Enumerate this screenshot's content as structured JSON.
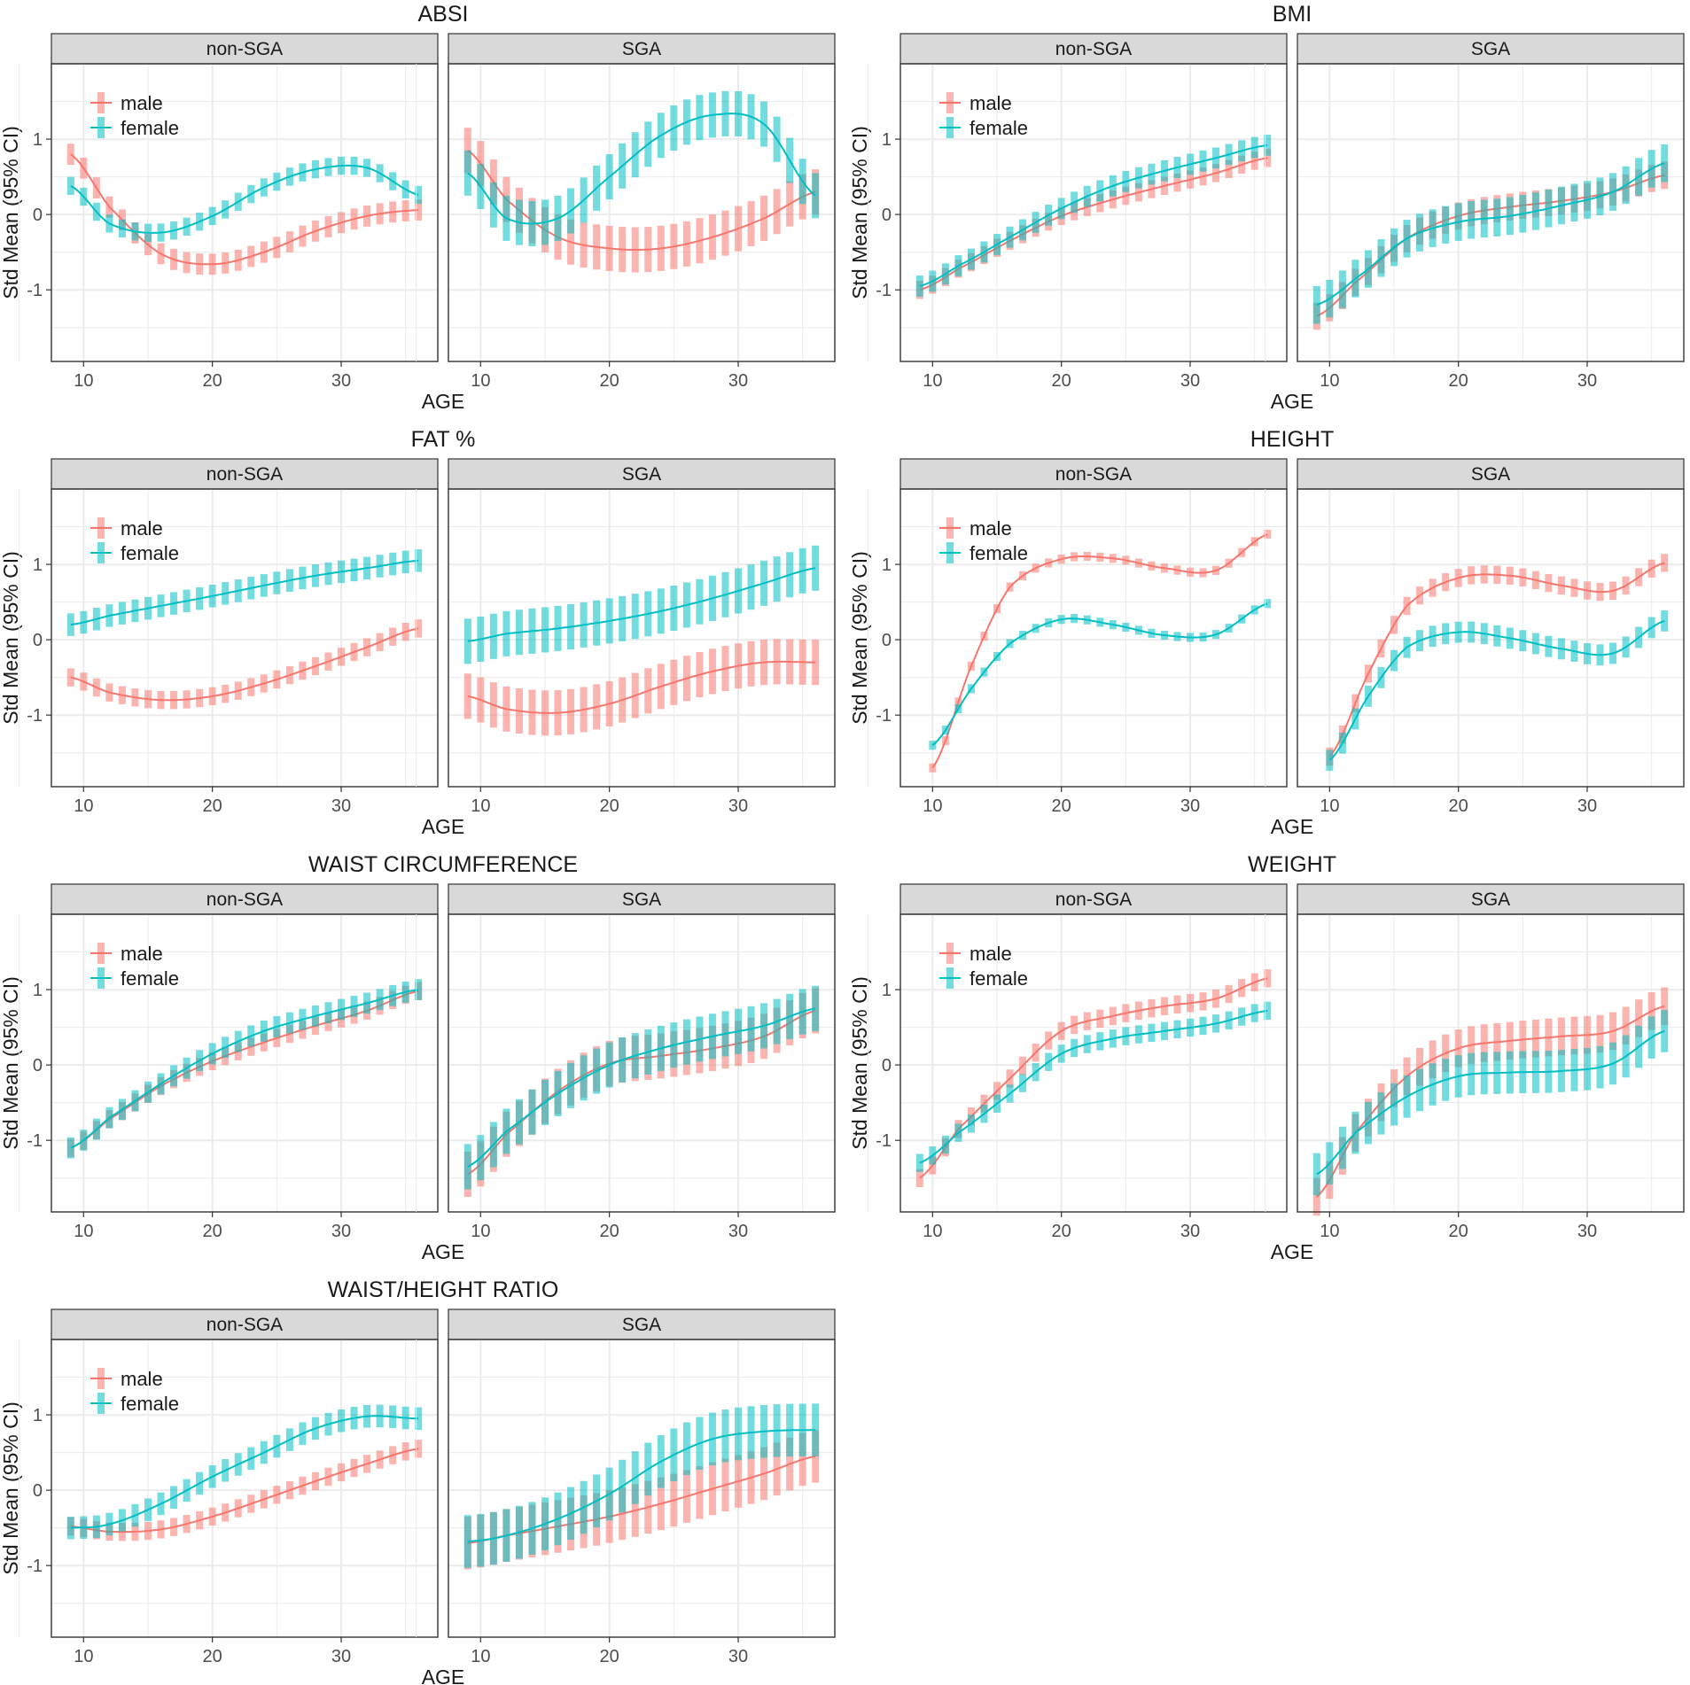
{
  "figure": {
    "xlabel": "AGE",
    "ylabel": "Std Mean (95% CI)",
    "facets": [
      "non-SGA",
      "SGA"
    ],
    "legend": [
      {
        "key": "male",
        "label": "male",
        "color": "#F8766D"
      },
      {
        "key": "female",
        "label": "female",
        "color": "#00BFC4"
      }
    ],
    "x_ticks": [
      10,
      20,
      30
    ],
    "y_ticks": [
      -1,
      0,
      1
    ],
    "xlim": [
      7.5,
      37.5
    ],
    "ylim": [
      -1.95,
      2.0
    ]
  },
  "chart_data": [
    {
      "type": "line",
      "title": "ABSI",
      "ci_halfwidth": {
        "non-SGA": {
          "male": 0.14,
          "female": 0.12
        },
        "SGA": {
          "male": 0.3,
          "female": 0.3
        }
      },
      "series": {
        "non-SGA": {
          "male": {
            "x": [
              9,
              12,
              16,
              20,
              24,
              28,
              32,
              36
            ],
            "y": [
              0.8,
              0.1,
              -0.52,
              -0.66,
              -0.5,
              -0.22,
              -0.02,
              0.06
            ]
          },
          "female": {
            "x": [
              9,
              12,
              16,
              20,
              24,
              28,
              32,
              36
            ],
            "y": [
              0.38,
              -0.12,
              -0.24,
              -0.02,
              0.36,
              0.6,
              0.62,
              0.26
            ]
          }
        },
        "SGA": {
          "male": {
            "x": [
              9,
              12,
              16,
              20,
              24,
              28,
              32,
              36
            ],
            "y": [
              0.85,
              0.2,
              -0.3,
              -0.45,
              -0.45,
              -0.3,
              -0.05,
              0.3
            ]
          },
          "female": {
            "x": [
              9,
              12,
              16,
              20,
              24,
              28,
              32,
              36
            ],
            "y": [
              0.55,
              -0.05,
              -0.05,
              0.5,
              1.05,
              1.32,
              1.2,
              0.25
            ]
          }
        }
      }
    },
    {
      "type": "line",
      "title": "BMI",
      "ci_halfwidth": {
        "non-SGA": {
          "male": 0.12,
          "female": 0.14
        },
        "SGA": {
          "male": 0.18,
          "female": 0.25
        }
      },
      "series": {
        "non-SGA": {
          "male": {
            "x": [
              9,
              12,
              16,
              20,
              24,
              28,
              32,
              36
            ],
            "y": [
              -1.0,
              -0.72,
              -0.35,
              -0.02,
              0.2,
              0.38,
              0.55,
              0.75
            ]
          },
          "female": {
            "x": [
              9,
              12,
              16,
              20,
              24,
              28,
              32,
              36
            ],
            "y": [
              -0.95,
              -0.68,
              -0.3,
              0.08,
              0.38,
              0.58,
              0.75,
              0.92
            ]
          }
        },
        "SGA": {
          "male": {
            "x": [
              9,
              12,
              16,
              20,
              24,
              28,
              32,
              36
            ],
            "y": [
              -1.35,
              -0.9,
              -0.32,
              -0.02,
              0.1,
              0.18,
              0.3,
              0.52
            ]
          },
          "female": {
            "x": [
              9,
              12,
              16,
              20,
              24,
              28,
              32,
              36
            ],
            "y": [
              -1.2,
              -0.85,
              -0.32,
              -0.1,
              -0.02,
              0.12,
              0.3,
              0.68
            ]
          }
        }
      }
    },
    {
      "type": "line",
      "title": "FAT %",
      "ci_halfwidth": {
        "non-SGA": {
          "male": 0.12,
          "female": 0.15
        },
        "SGA": {
          "male": 0.3,
          "female": 0.3
        }
      },
      "series": {
        "non-SGA": {
          "male": {
            "x": [
              9,
              12,
              16,
              20,
              24,
              28,
              32,
              36
            ],
            "y": [
              -0.5,
              -0.7,
              -0.8,
              -0.75,
              -0.58,
              -0.35,
              -0.1,
              0.15
            ]
          },
          "female": {
            "x": [
              9,
              12,
              16,
              20,
              24,
              28,
              32,
              36
            ],
            "y": [
              0.2,
              0.32,
              0.45,
              0.58,
              0.72,
              0.85,
              0.95,
              1.05
            ]
          }
        },
        "SGA": {
          "male": {
            "x": [
              9,
              12,
              16,
              20,
              24,
              28,
              32,
              36
            ],
            "y": [
              -0.75,
              -0.92,
              -0.97,
              -0.85,
              -0.62,
              -0.42,
              -0.3,
              -0.3
            ]
          },
          "female": {
            "x": [
              9,
              12,
              16,
              20,
              24,
              28,
              32,
              36
            ],
            "y": [
              -0.02,
              0.08,
              0.15,
              0.25,
              0.38,
              0.55,
              0.75,
              0.95
            ]
          }
        }
      }
    },
    {
      "type": "line",
      "title": "HEIGHT",
      "ci_halfwidth": {
        "non-SGA": {
          "male": 0.06,
          "female": 0.06
        },
        "SGA": {
          "male": 0.12,
          "female": 0.14
        }
      },
      "series": {
        "non-SGA": {
          "male": {
            "x": [
              10,
              13,
              16,
              20,
              24,
              28,
              32,
              36
            ],
            "y": [
              -1.7,
              -0.35,
              0.7,
              1.07,
              1.08,
              0.95,
              0.92,
              1.4
            ]
          },
          "female": {
            "x": [
              10,
              13,
              16,
              20,
              24,
              28,
              32,
              36
            ],
            "y": [
              -1.4,
              -0.65,
              -0.05,
              0.27,
              0.2,
              0.06,
              0.07,
              0.48
            ]
          }
        },
        "SGA": {
          "male": {
            "x": [
              10,
              13,
              16,
              20,
              24,
              28,
              32,
              36
            ],
            "y": [
              -1.55,
              -0.45,
              0.45,
              0.82,
              0.85,
              0.72,
              0.65,
              1.02
            ]
          },
          "female": {
            "x": [
              10,
              13,
              16,
              20,
              24,
              28,
              32,
              36
            ],
            "y": [
              -1.6,
              -0.75,
              -0.1,
              0.1,
              0.02,
              -0.12,
              -0.18,
              0.25
            ]
          }
        }
      }
    },
    {
      "type": "line",
      "title": "WAIST CIRCUMFERENCE",
      "ci_halfwidth": {
        "non-SGA": {
          "male": 0.12,
          "female": 0.14
        },
        "SGA": {
          "male": 0.3,
          "female": 0.3
        }
      },
      "series": {
        "non-SGA": {
          "male": {
            "x": [
              9,
              12,
              16,
              20,
              24,
              28,
              32,
              36
            ],
            "y": [
              -1.1,
              -0.72,
              -0.28,
              0.05,
              0.3,
              0.52,
              0.72,
              0.98
            ]
          },
          "female": {
            "x": [
              9,
              12,
              16,
              20,
              24,
              28,
              32,
              36
            ],
            "y": [
              -1.1,
              -0.7,
              -0.25,
              0.15,
              0.45,
              0.65,
              0.82,
              1.0
            ]
          }
        },
        "SGA": {
          "male": {
            "x": [
              9,
              12,
              16,
              20,
              24,
              28,
              32,
              36
            ],
            "y": [
              -1.45,
              -0.92,
              -0.35,
              0.02,
              0.12,
              0.22,
              0.38,
              0.72
            ]
          },
          "female": {
            "x": [
              9,
              12,
              16,
              20,
              24,
              28,
              32,
              36
            ],
            "y": [
              -1.35,
              -0.88,
              -0.38,
              0.0,
              0.22,
              0.38,
              0.52,
              0.75
            ]
          }
        }
      }
    },
    {
      "type": "line",
      "title": "WEIGHT",
      "ci_halfwidth": {
        "non-SGA": {
          "male": 0.12,
          "female": 0.12
        },
        "SGA": {
          "male": 0.25,
          "female": 0.28
        }
      },
      "series": {
        "non-SGA": {
          "male": {
            "x": [
              9,
              12,
              16,
              20,
              24,
              28,
              32,
              36
            ],
            "y": [
              -1.5,
              -0.85,
              -0.18,
              0.45,
              0.65,
              0.78,
              0.88,
              1.15
            ]
          },
          "female": {
            "x": [
              9,
              12,
              16,
              20,
              24,
              28,
              32,
              36
            ],
            "y": [
              -1.3,
              -0.9,
              -0.38,
              0.15,
              0.35,
              0.45,
              0.55,
              0.72
            ]
          }
        },
        "SGA": {
          "male": {
            "x": [
              9,
              12,
              16,
              20,
              24,
              28,
              32,
              36
            ],
            "y": [
              -1.75,
              -0.9,
              -0.15,
              0.22,
              0.32,
              0.38,
              0.45,
              0.78
            ]
          },
          "female": {
            "x": [
              9,
              12,
              16,
              20,
              24,
              28,
              32,
              36
            ],
            "y": [
              -1.45,
              -0.9,
              -0.42,
              -0.15,
              -0.1,
              -0.08,
              0.02,
              0.45
            ]
          }
        }
      }
    },
    {
      "type": "line",
      "title": "WAIST/HEIGHT RATIO",
      "ci_halfwidth": {
        "non-SGA": {
          "male": 0.12,
          "female": 0.15
        },
        "SGA": {
          "male": 0.35,
          "female": 0.35
        }
      },
      "series": {
        "non-SGA": {
          "male": {
            "x": [
              9,
              12,
              16,
              20,
              24,
              28,
              32,
              36
            ],
            "y": [
              -0.48,
              -0.55,
              -0.52,
              -0.35,
              -0.12,
              0.12,
              0.35,
              0.55
            ]
          },
          "female": {
            "x": [
              9,
              12,
              16,
              20,
              24,
              28,
              32,
              36
            ],
            "y": [
              -0.5,
              -0.45,
              -0.18,
              0.18,
              0.5,
              0.82,
              0.98,
              0.95
            ]
          }
        },
        "SGA": {
          "male": {
            "x": [
              9,
              12,
              16,
              20,
              24,
              28,
              32,
              36
            ],
            "y": [
              -0.7,
              -0.6,
              -0.48,
              -0.35,
              -0.18,
              0.02,
              0.22,
              0.45
            ]
          },
          "female": {
            "x": [
              9,
              12,
              16,
              20,
              24,
              28,
              32,
              36
            ],
            "y": [
              -0.68,
              -0.6,
              -0.38,
              -0.05,
              0.38,
              0.68,
              0.78,
              0.8
            ]
          }
        }
      }
    }
  ]
}
